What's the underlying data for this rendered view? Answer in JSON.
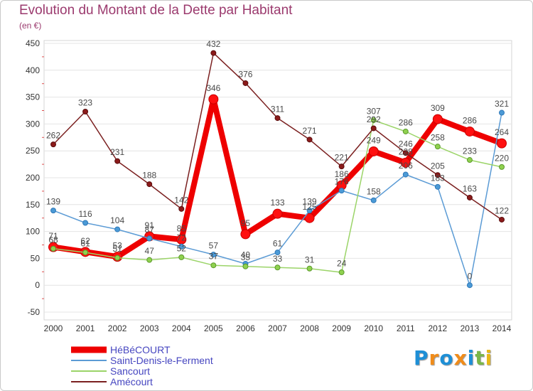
{
  "chart_data": {
    "type": "line",
    "title": "Evolution du Montant de la Dette par Habitant",
    "subtitle": "(en €)",
    "x": [
      "2000",
      "2001",
      "2002",
      "2003",
      "2004",
      "2005",
      "2006",
      "2007",
      "2008",
      "2009",
      "2010",
      "2011",
      "2012",
      "2013",
      "2014"
    ],
    "ylim": [
      -50,
      450
    ],
    "yticks": [
      -50,
      0,
      50,
      100,
      150,
      200,
      250,
      300,
      350,
      400,
      450
    ],
    "grid": true,
    "legend": "bottom-left",
    "series": [
      {
        "name": "HéBéCOURT",
        "color": "#ee0000",
        "values": [
          71,
          62,
          53,
          91,
          85,
          346,
          95,
          133,
          125,
          186,
          249,
          228,
          309,
          286,
          264
        ]
      },
      {
        "name": "Saint-Denis-le-Ferment",
        "color": "#5b9bd5",
        "values": [
          139,
          116,
          104,
          87,
          72,
          57,
          40,
          61,
          139,
          176,
          158,
          206,
          183,
          0,
          321
        ]
      },
      {
        "name": "Sancourt",
        "color": "#9bd468",
        "values": [
          68,
          61,
          51,
          47,
          52,
          37,
          35,
          33,
          31,
          24,
          307,
          286,
          258,
          233,
          220
        ]
      },
      {
        "name": "Amécourt",
        "color": "#7b2020",
        "values": [
          262,
          323,
          231,
          188,
          142,
          432,
          376,
          311,
          271,
          221,
          292,
          246,
          205,
          163,
          122
        ]
      }
    ]
  },
  "logo": {
    "letters": [
      "P",
      "r",
      "o",
      "x",
      "i",
      "t",
      "i"
    ],
    "colors": [
      "#1e8fd6",
      "#f08c1a",
      "#1e8fd6",
      "#f08c1a",
      "#1e8fd6",
      "#7ab648",
      "#e8b818"
    ]
  }
}
